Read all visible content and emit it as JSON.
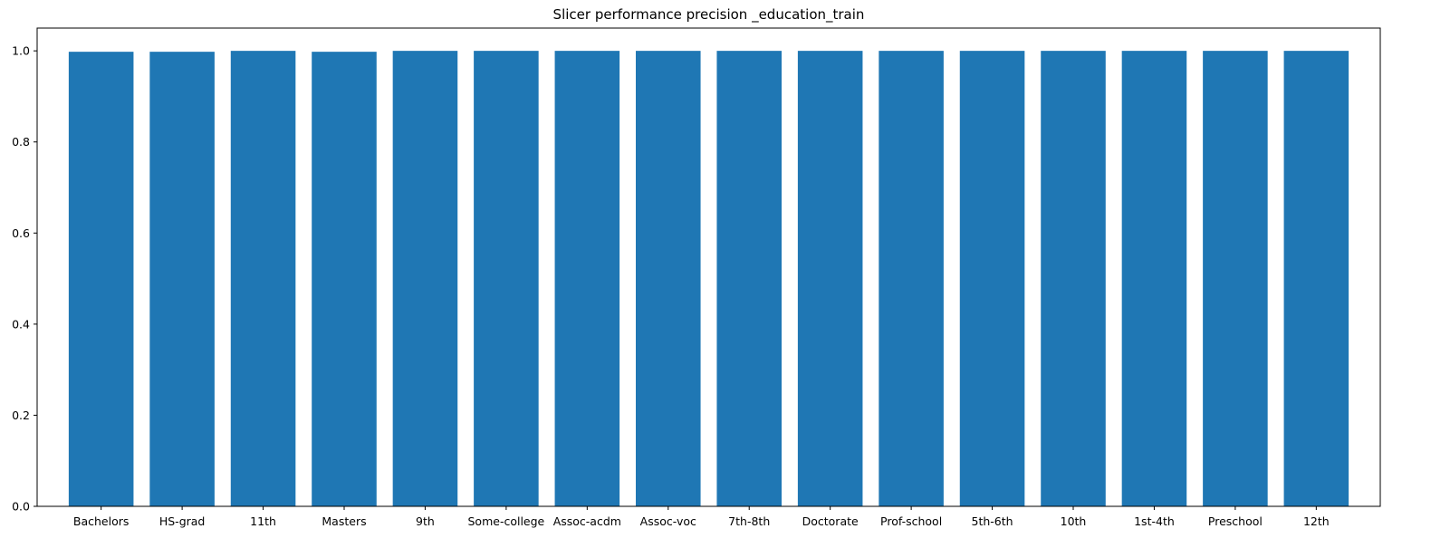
{
  "chart_data": {
    "type": "bar",
    "title": "Slicer performance precision _education_train",
    "xlabel": "",
    "ylabel": "",
    "categories": [
      "Bachelors",
      "HS-grad",
      "11th",
      "Masters",
      "9th",
      "Some-college",
      "Assoc-acdm",
      "Assoc-voc",
      "7th-8th",
      "Doctorate",
      "Prof-school",
      "5th-6th",
      "10th",
      "1st-4th",
      "Preschool",
      "12th"
    ],
    "values": [
      0.998,
      0.998,
      1.0,
      0.998,
      1.0,
      1.0,
      1.0,
      1.0,
      1.0,
      1.0,
      1.0,
      1.0,
      1.0,
      1.0,
      1.0,
      1.0
    ],
    "ylim": [
      0,
      1.05
    ],
    "yticks": [
      0.0,
      0.2,
      0.4,
      0.6,
      0.8,
      1.0
    ],
    "ytick_labels": [
      "0.0",
      "0.2",
      "0.4",
      "0.6",
      "0.8",
      "1.0"
    ],
    "grid": false,
    "legend": "none",
    "bar_color": "#1f77b4"
  }
}
